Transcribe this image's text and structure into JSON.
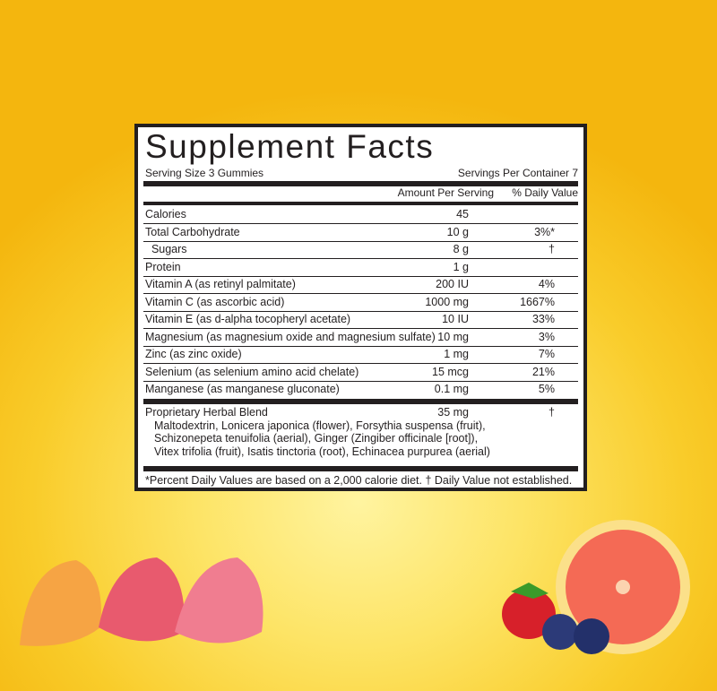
{
  "label": {
    "title": "Supplement Facts",
    "serving_size": "Serving Size 3 Gummies",
    "servings_per_container": "Servings Per Container 7",
    "col_amount": "Amount Per Serving",
    "col_dv": "% Daily Value",
    "rows": [
      {
        "name": "Calories",
        "amount": "45",
        "dv": ""
      },
      {
        "name": "Total Carbohydrate",
        "amount": "10 g",
        "dv": "3%*"
      },
      {
        "name": "  Sugars",
        "amount": "8 g",
        "dv": "†"
      },
      {
        "name": "Protein",
        "amount": "1 g",
        "dv": ""
      },
      {
        "name": "Vitamin A (as retinyl palmitate)",
        "amount": "200 IU",
        "dv": "4%"
      },
      {
        "name": "Vitamin C (as ascorbic acid)",
        "amount": "1000 mg",
        "dv": "1667%"
      },
      {
        "name": "Vitamin E (as d-alpha tocopheryl acetate)",
        "amount": "10 IU",
        "dv": "33%"
      },
      {
        "name": "Magnesium (as magnesium oxide and magnesium sulfate)",
        "amount": "10 mg",
        "dv": "3%"
      },
      {
        "name": "Zinc (as zinc oxide)",
        "amount": "1 mg",
        "dv": "7%"
      },
      {
        "name": "Selenium (as selenium amino acid chelate)",
        "amount": "15 mcg",
        "dv": "21%"
      },
      {
        "name": "Manganese (as manganese gluconate)",
        "amount": "0.1 mg",
        "dv": "5%"
      }
    ],
    "blend": {
      "name": "Proprietary Herbal Blend",
      "amount": "35 mg",
      "dv": "†",
      "lines": [
        "Maltodextrin, Lonicera japonica (flower), Forsythia suspensa (fruit),",
        "Schizonepeta tenuifolia (aerial), Ginger (Zingiber officinale [root]),",
        "Vitex trifolia (fruit), Isatis tinctoria (root), Echinacea purpurea (aerial)"
      ]
    },
    "footnote": "*Percent Daily Values are based on a 2,000 calorie diet.  † Daily Value not established."
  },
  "colors": {
    "background": "#f9cc2a",
    "ink": "#231f20"
  }
}
